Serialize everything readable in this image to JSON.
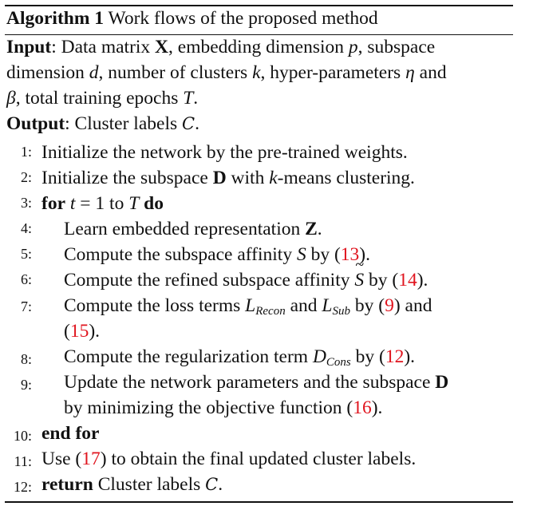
{
  "caption": {
    "label": "Algorithm 1",
    "title": "Work flows of the proposed method"
  },
  "input": {
    "label": "Input",
    "line1": [
      ": Data matrix ",
      "X",
      ", embedding dimension ",
      "p",
      ", subspace"
    ],
    "line2": [
      "dimension ",
      "d",
      ", number of clusters ",
      "k",
      ", hyper-parameters ",
      "η",
      " and"
    ],
    "line3": [
      "β",
      ", total training epochs ",
      "T",
      "."
    ]
  },
  "output": {
    "label": "Output",
    "text": ": Cluster labels ",
    "symbol": "C",
    "end": "."
  },
  "lines": [
    {
      "no": "1:",
      "text": "Initialize the network by the pre-trained weights."
    },
    {
      "no": "2:",
      "pre": "Initialize the subspace ",
      "bold": "D",
      "mid": " with ",
      "var": "k",
      "post": "-means clustering."
    },
    {
      "no": "3:",
      "kw1": "for",
      "var": "t",
      "eq": " = 1 to ",
      "var2": "T",
      "kw2": "do"
    },
    {
      "no": "4:",
      "pre": "Learn embedded representation ",
      "bold": "Z",
      "post": "."
    },
    {
      "no": "5:",
      "pre": "Compute the subspace affinity ",
      "var": "S",
      "mid": " by (",
      "ref": "13",
      "post": ")."
    },
    {
      "no": "6:",
      "pre": "Compute the refined subspace affinity ",
      "var": "S",
      "mid": " by (",
      "ref": "14",
      "post": ")."
    },
    {
      "no": "7:",
      "pre": "Compute the loss terms ",
      "var": "L",
      "sub": "Recon",
      "mid": " and ",
      "var2": "L",
      "sub2": "Sub",
      "mid2": " by (",
      "ref": "9",
      "mid3": ") and",
      "cont_pre": "(",
      "ref2": "15",
      "cont_post": ")."
    },
    {
      "no": "8:",
      "pre": "Compute the regularization term ",
      "var": "D",
      "sub": "Cons",
      "mid": " by (",
      "ref": "12",
      "post": ")."
    },
    {
      "no": "9:",
      "pre": "Update the network parameters and the subspace ",
      "bold": "D",
      "cont_pre": "by minimizing the objective function (",
      "ref": "16",
      "cont_post": ")."
    },
    {
      "no": "10:",
      "kw": "end for"
    },
    {
      "no": "11:",
      "pre": "Use (",
      "ref": "17",
      "post": ") to obtain the final updated cluster labels."
    },
    {
      "no": "12:",
      "kw": "return",
      "text": " Cluster labels ",
      "symbol": "C",
      "end": "."
    }
  ]
}
